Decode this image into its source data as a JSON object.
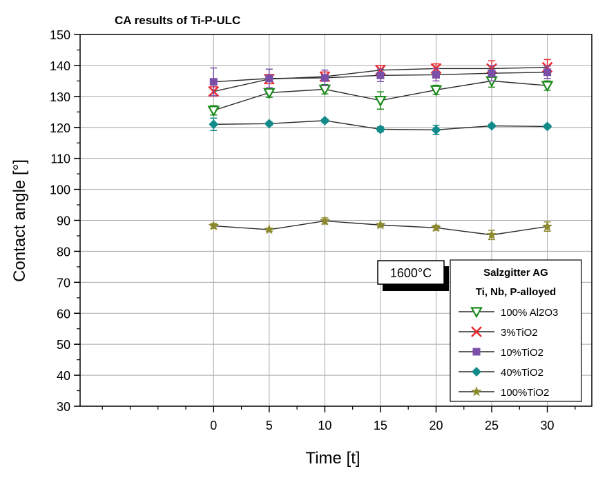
{
  "chart_data": {
    "type": "line",
    "title": "CA results of Ti-P-ULC",
    "xlabel": "Time [t]",
    "ylabel": "Contact angle [°]",
    "xlim": [
      -12,
      34
    ],
    "ylim": [
      30,
      150
    ],
    "x_ticks": [
      0,
      5,
      10,
      15,
      20,
      25,
      30
    ],
    "x_tick_labels": [
      "0",
      "5",
      "10",
      "15",
      "20",
      "25",
      "30"
    ],
    "y_ticks": [
      30,
      40,
      50,
      60,
      70,
      80,
      90,
      100,
      110,
      120,
      130,
      140,
      150
    ],
    "y_tick_labels": [
      "30",
      "40",
      "50",
      "60",
      "70",
      "80",
      "90",
      "100",
      "110",
      "120",
      "130",
      "140",
      "150"
    ],
    "grid": true,
    "annotation": "1600°C",
    "legend_title": [
      "Salzgitter AG",
      "Ti, Nb, P-alloyed"
    ],
    "legend_position": "lower-right",
    "x": [
      0,
      5,
      10,
      15,
      20,
      25,
      30
    ],
    "series": [
      {
        "name": "100% Al2O3",
        "marker": "triangle-down-open",
        "color": "#1a8a1a",
        "values": [
          125.5,
          131.2,
          132.3,
          128.7,
          132.1,
          135.0,
          133.5
        ],
        "errors": [
          1.5,
          1.5,
          1.5,
          2.8,
          1.5,
          2.0,
          1.5
        ]
      },
      {
        "name": "3%TiO2",
        "marker": "x",
        "color": "#e8252a",
        "values": [
          131.6,
          135.6,
          136.4,
          138.5,
          139.0,
          139.0,
          139.4
        ],
        "errors": [
          1.5,
          1.5,
          1.5,
          1.5,
          1.5,
          2.5,
          2.5
        ]
      },
      {
        "name": "10%TiO2",
        "marker": "square",
        "color": "#7b4fa8",
        "values": [
          134.7,
          135.8,
          136.0,
          136.8,
          137.0,
          137.5,
          137.8
        ],
        "errors": [
          4.5,
          3.0,
          2.5,
          2.0,
          2.0,
          2.5,
          2.0
        ]
      },
      {
        "name": "40%TiO2",
        "marker": "diamond",
        "color": "#138a8a",
        "values": [
          121.0,
          121.2,
          122.2,
          119.4,
          119.2,
          120.5,
          120.3
        ],
        "errors": [
          2.0,
          0.5,
          0.5,
          0.8,
          1.5,
          0.5,
          0.5
        ]
      },
      {
        "name": "100%TiO2",
        "marker": "star",
        "color": "#8c8a2e",
        "values": [
          88.2,
          87.0,
          89.8,
          88.5,
          87.6,
          85.3,
          88.0
        ],
        "errors": [
          0.8,
          0.5,
          1.0,
          0.5,
          0.8,
          1.5,
          1.5
        ]
      }
    ]
  }
}
